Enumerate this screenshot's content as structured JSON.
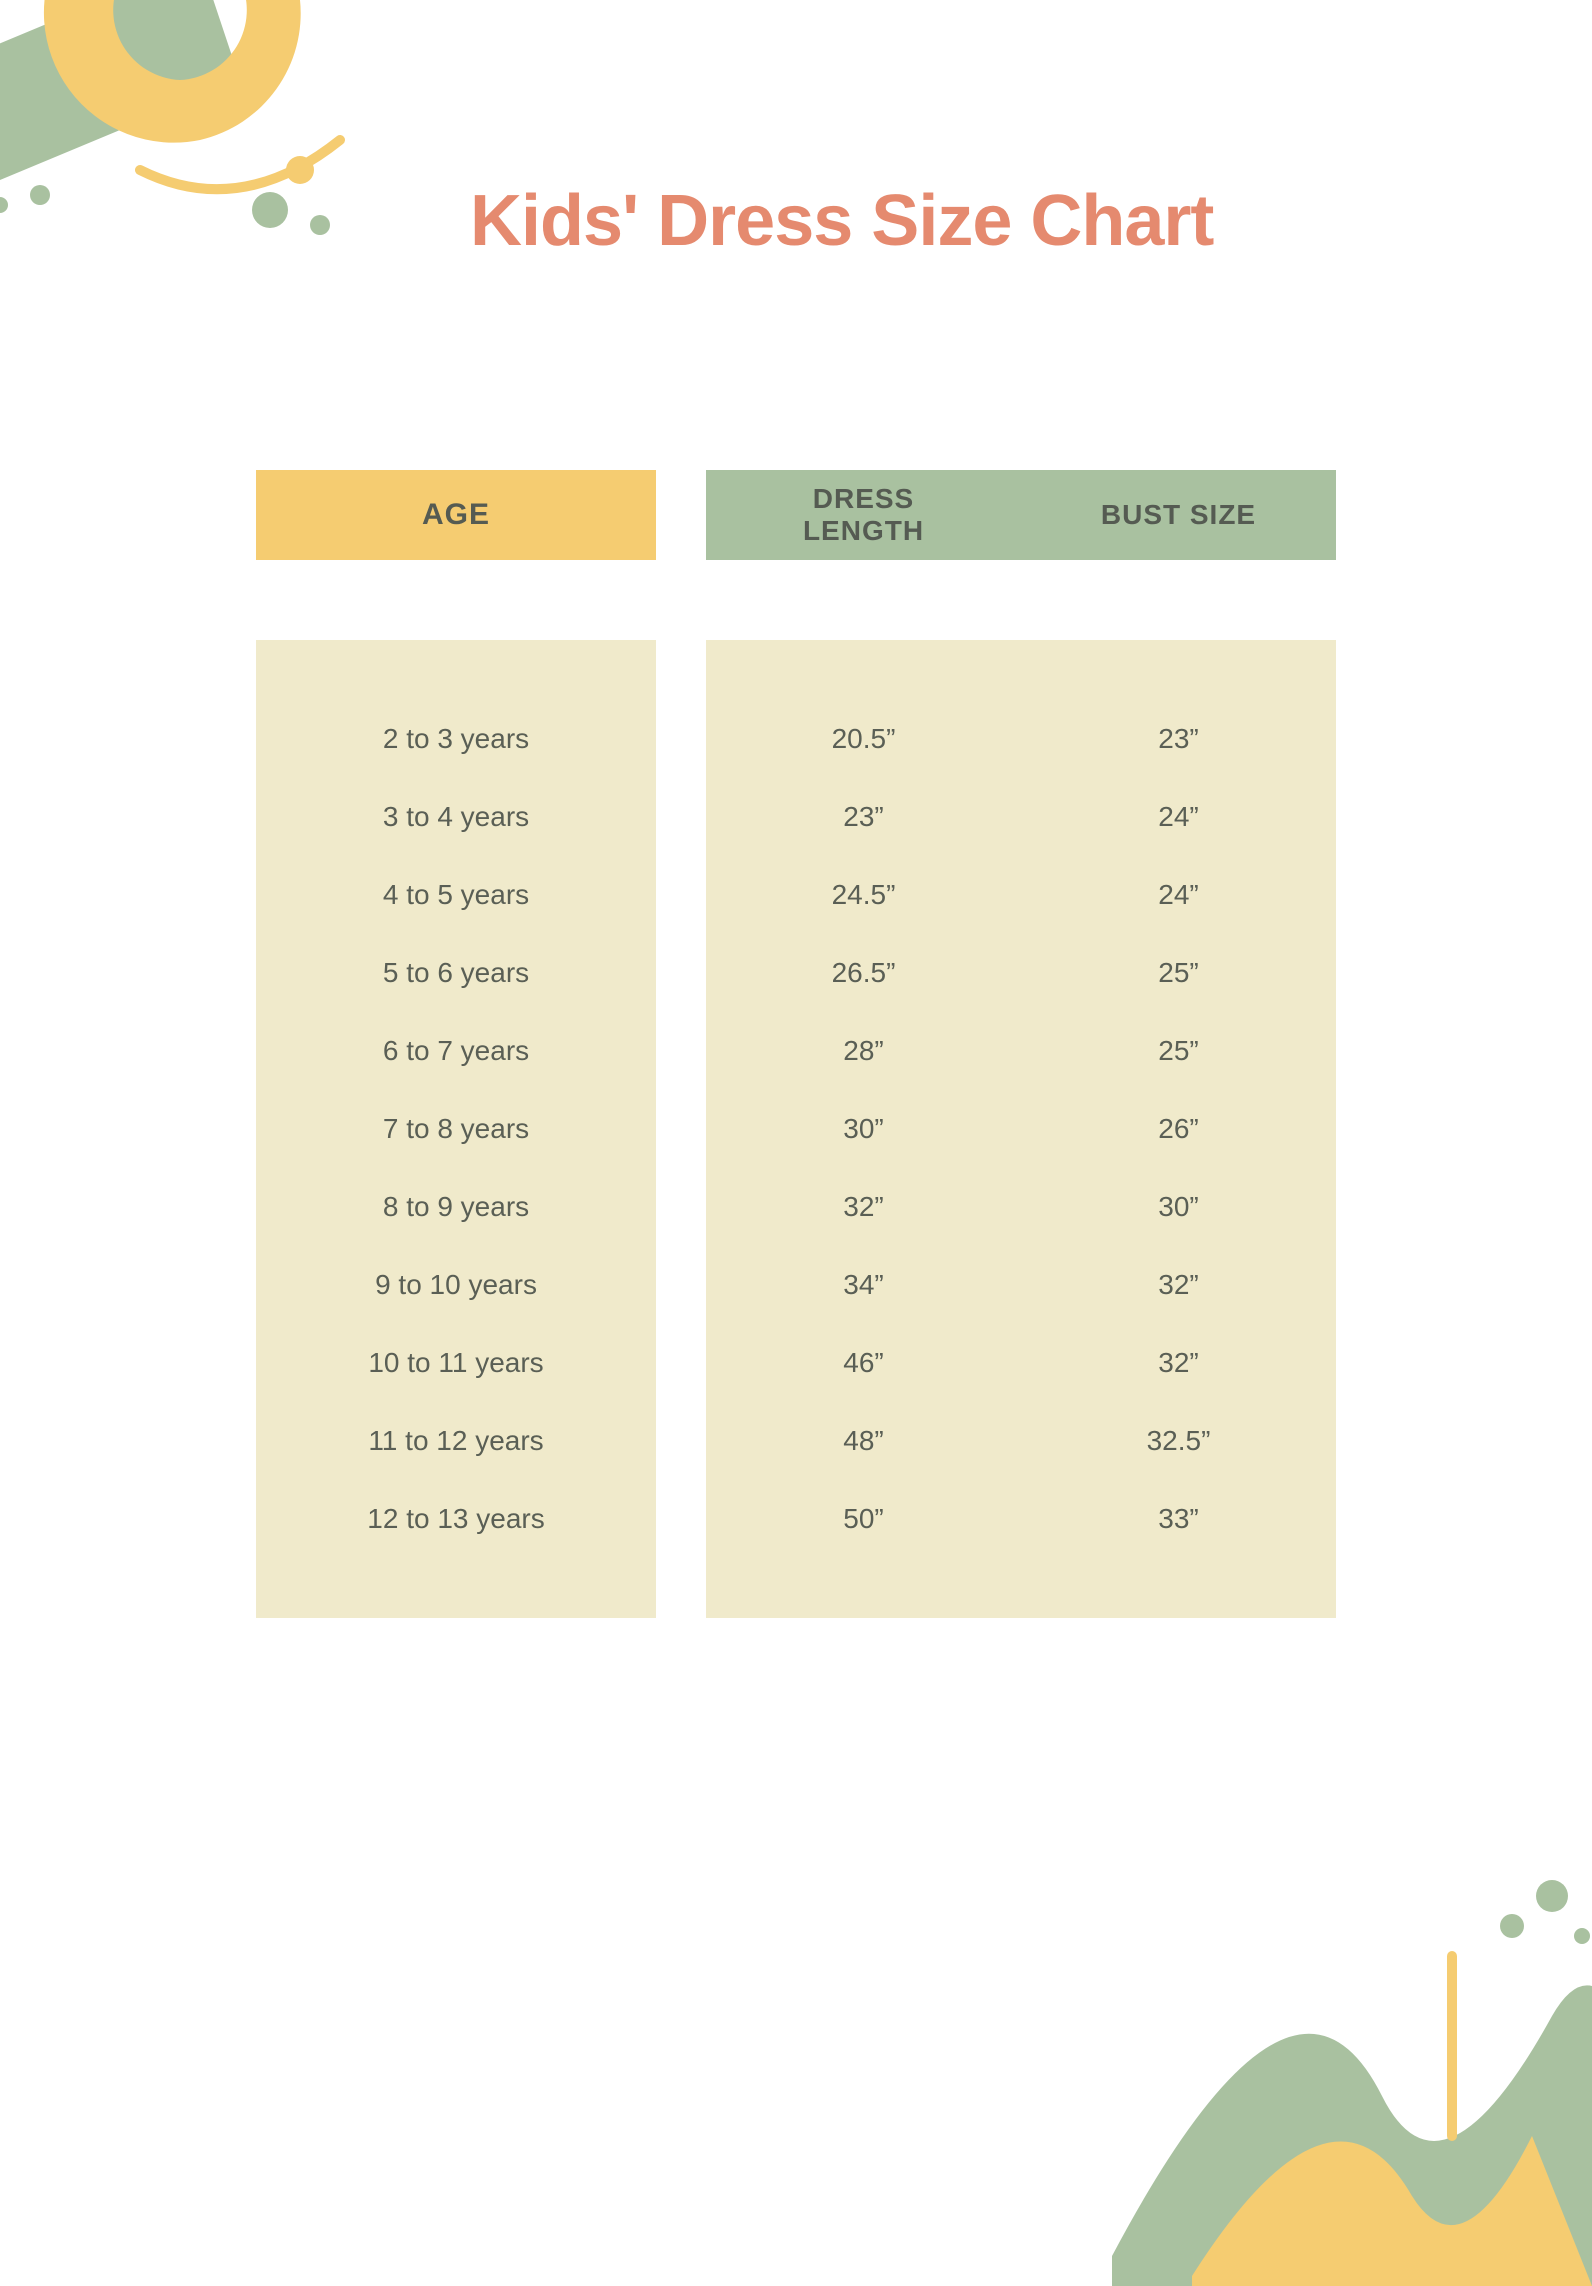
{
  "title": {
    "text": "Kids' Dress Size Chart",
    "color": "#e58a6f",
    "fontsize": 72
  },
  "colors": {
    "yellow": "#f5cc71",
    "sage": "#a9c1a0",
    "cream": "#f0eacb",
    "header_text": "#555b52",
    "body_text": "#5a5f55",
    "background": "#ffffff"
  },
  "table": {
    "type": "table",
    "headers": {
      "age": "AGE",
      "dress_length": "DRESS\nLENGTH",
      "bust_size": "BUST SIZE"
    },
    "rows": [
      {
        "age": "2 to 3 years",
        "dress_length": "20.5”",
        "bust_size": "23”"
      },
      {
        "age": "3 to 4 years",
        "dress_length": "23”",
        "bust_size": "24”"
      },
      {
        "age": "4 to 5 years",
        "dress_length": "24.5”",
        "bust_size": "24”"
      },
      {
        "age": "5 to 6 years",
        "dress_length": "26.5”",
        "bust_size": "25”"
      },
      {
        "age": "6 to 7 years",
        "dress_length": "28”",
        "bust_size": "25”"
      },
      {
        "age": "7 to 8 years",
        "dress_length": "30”",
        "bust_size": "26”"
      },
      {
        "age": "8 to 9 years",
        "dress_length": "32”",
        "bust_size": "30”"
      },
      {
        "age": "9 to 10 years",
        "dress_length": "34”",
        "bust_size": "32”"
      },
      {
        "age": "10 to 11 years",
        "dress_length": "46”",
        "bust_size": "32”"
      },
      {
        "age": "11 to 12 years",
        "dress_length": "48”",
        "bust_size": "32.5”"
      },
      {
        "age": "12 to 13 years",
        "dress_length": "50”",
        "bust_size": "33”"
      }
    ]
  }
}
